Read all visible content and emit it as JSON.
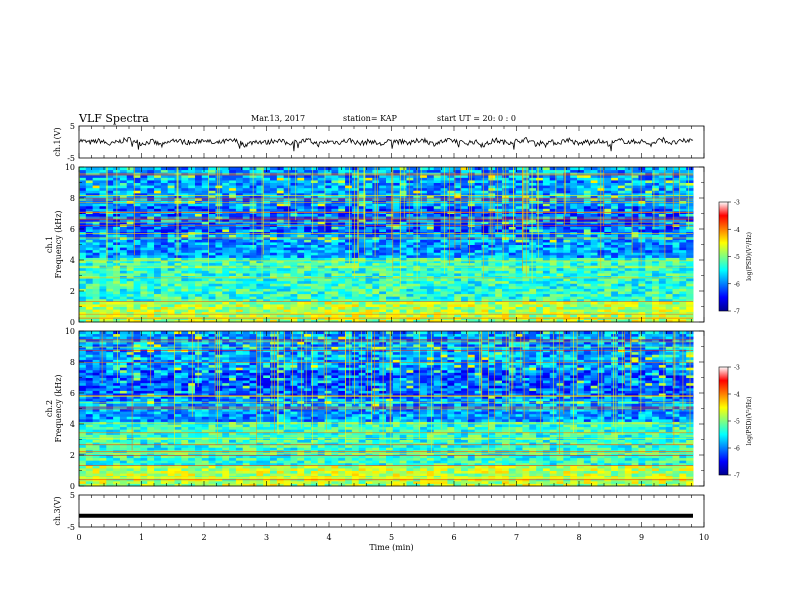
{
  "header": {
    "title": "VLF Spectra",
    "date": "Mar.13, 2017",
    "station": "station= KAP",
    "start": "start  UT =   20: 0  : 0"
  },
  "chart_data": [
    {
      "type": "line",
      "panel": "ch1-waveform",
      "ylabel": "ch.1(V)",
      "ylim": [
        -5,
        5
      ],
      "yticks": [
        "5",
        "-5"
      ],
      "xlim": [
        0,
        10
      ],
      "series": [
        {
          "values": [
            0.6,
            -0.2,
            0.4,
            -0.8,
            0.3,
            0.9,
            -0.5,
            0.2,
            -1.1,
            0.5,
            0.1,
            -0.3,
            0.8,
            -0.6,
            0.2,
            0.4,
            -0.9,
            0.3,
            -0.2,
            0.7,
            -0.4,
            0.1,
            0.5,
            -0.7,
            0.2,
            -0.1,
            0.6,
            -0.5,
            0.3,
            -0.8,
            0.4,
            0.0,
            -0.3,
            0.9,
            -0.6,
            0.2,
            0.5,
            -0.4,
            0.1,
            -0.9,
            0.6,
            -0.2,
            0.3,
            0.7,
            -0.5,
            0.1,
            -0.3,
            0.8,
            -0.7,
            0.4,
            0.2,
            -0.6,
            0.5,
            -0.1,
            0.3,
            -0.8,
            0.9,
            -0.4,
            0.2,
            0.6
          ]
        }
      ]
    },
    {
      "type": "heatmap",
      "panel": "ch1-spectrogram",
      "ylabel": "ch.1\nFrequency (kHz)",
      "ylim": [
        0,
        10
      ],
      "yticks": [
        "0",
        "2",
        "4",
        "6",
        "8",
        "10"
      ],
      "xlim": [
        0,
        10
      ],
      "colorbar": {
        "label": "log(PSD)(V²/Hz)",
        "range": [
          -7,
          -3
        ],
        "ticks": [
          "-3",
          "-4",
          "-5",
          "-6",
          "-7"
        ]
      }
    },
    {
      "type": "heatmap",
      "panel": "ch2-spectrogram",
      "ylabel": "ch.2\nFrequency (kHz)",
      "ylim": [
        0,
        10
      ],
      "yticks": [
        "0",
        "2",
        "4",
        "6",
        "8",
        "10"
      ],
      "xlim": [
        0,
        10
      ],
      "colorbar": {
        "label": "log(PSD)(V²/Hz)",
        "range": [
          -7,
          -3
        ],
        "ticks": [
          "-3",
          "-4",
          "-5",
          "-6",
          "-7"
        ]
      }
    },
    {
      "type": "line",
      "panel": "ch3-waveform",
      "ylabel": "ch.3(V)",
      "ylim": [
        -5,
        5
      ],
      "yticks": [
        "5",
        "-5"
      ],
      "xlim": [
        0,
        10
      ],
      "series": [
        {
          "values": [
            -1.5,
            -1.5
          ]
        }
      ]
    }
  ],
  "xaxis": {
    "label": "Time  (min)",
    "ticks": [
      "0",
      "1",
      "2",
      "3",
      "4",
      "5",
      "6",
      "7",
      "8",
      "9",
      "10"
    ]
  },
  "colors": {
    "ch1_trace": "#000000",
    "ch3_trace": "#000000"
  }
}
